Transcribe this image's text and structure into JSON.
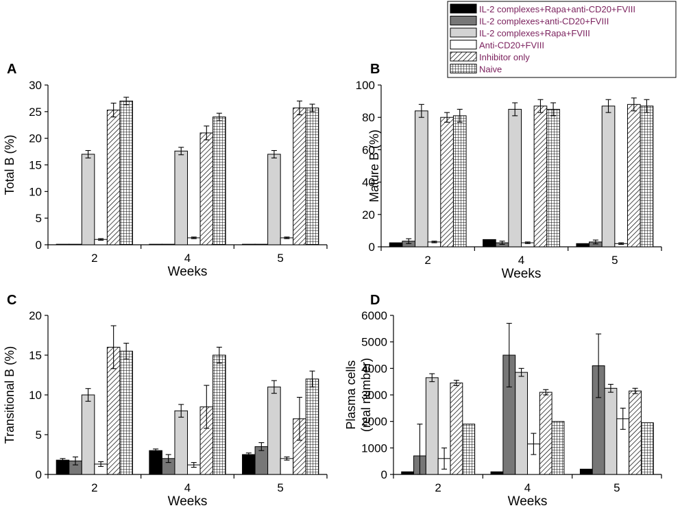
{
  "figure": {
    "series_names": [
      "IL-2 complexes+Rapa+anti-CD20+FVIII",
      "IL-2 complexes+anti-CD20+FVIII",
      "IL-2 complexes+Rapa+FVIII",
      "Anti-CD20+FVIII",
      "Inhibitor only",
      "Naive"
    ],
    "series_fills": [
      "solid-black",
      "solid-darkgray",
      "solid-lightgray",
      "white",
      "diagonal-hatch",
      "grid-hatch"
    ],
    "colors": {
      "black": "#000000",
      "darkgray": "#777777",
      "lightgray": "#d3d3d3",
      "white": "#ffffff",
      "legend_text": "#7a1f5c"
    }
  },
  "chart_data": [
    {
      "panel": "A",
      "type": "bar",
      "ylabel": "Total B (%)",
      "xlabel": "Weeks",
      "categories": [
        "2",
        "4",
        "5"
      ],
      "ylim": [
        0,
        30
      ],
      "yticks": [
        "0",
        "5",
        "10",
        "15",
        "20",
        "25",
        "30"
      ],
      "series": [
        {
          "name": "IL-2 complexes+Rapa+anti-CD20+FVIII",
          "values": [
            0.1,
            0.1,
            0.1
          ],
          "errors": [
            0,
            0,
            0
          ]
        },
        {
          "name": "IL-2 complexes+anti-CD20+FVIII",
          "values": [
            0.1,
            0.1,
            0.1
          ],
          "errors": [
            0,
            0,
            0
          ]
        },
        {
          "name": "IL-2 complexes+Rapa+FVIII",
          "values": [
            17.0,
            17.6,
            17.0
          ],
          "errors": [
            0.7,
            0.7,
            0.7
          ]
        },
        {
          "name": "Anti-CD20+FVIII",
          "values": [
            1.0,
            1.3,
            1.3
          ],
          "errors": [
            0.15,
            0.15,
            0.15
          ]
        },
        {
          "name": "Inhibitor only",
          "values": [
            25.3,
            21.0,
            25.7
          ],
          "errors": [
            1.3,
            1.3,
            1.3
          ]
        },
        {
          "name": "Naive",
          "values": [
            27.0,
            24.0,
            25.7
          ],
          "errors": [
            0.7,
            0.7,
            0.7
          ]
        }
      ]
    },
    {
      "panel": "B",
      "type": "bar",
      "ylabel": "Mature B (%)",
      "xlabel": "Weeks",
      "categories": [
        "2",
        "4",
        "5"
      ],
      "ylim": [
        0,
        100
      ],
      "yticks": [
        "0",
        "20",
        "40",
        "60",
        "80",
        "100"
      ],
      "series": [
        {
          "name": "IL-2 complexes+Rapa+anti-CD20+FVIII",
          "values": [
            2.5,
            4.5,
            2.0
          ],
          "errors": [
            0,
            0,
            0
          ]
        },
        {
          "name": "IL-2 complexes+anti-CD20+FVIII",
          "values": [
            3.5,
            2.5,
            3.0
          ],
          "errors": [
            1.5,
            1.0,
            1.2
          ]
        },
        {
          "name": "IL-2 complexes+Rapa+FVIII",
          "values": [
            84,
            85,
            87
          ],
          "errors": [
            4,
            4,
            4
          ]
        },
        {
          "name": "Anti-CD20+FVIII",
          "values": [
            3.0,
            2.5,
            2.0
          ],
          "errors": [
            0.5,
            0.5,
            0.5
          ]
        },
        {
          "name": "Inhibitor only",
          "values": [
            80,
            87,
            88
          ],
          "errors": [
            3,
            4,
            4
          ]
        },
        {
          "name": "Naive",
          "values": [
            81,
            85,
            87
          ],
          "errors": [
            4,
            4,
            4
          ]
        }
      ]
    },
    {
      "panel": "C",
      "type": "bar",
      "ylabel": "Transitional B (%)",
      "xlabel": "Weeks",
      "categories": [
        "2",
        "4",
        "5"
      ],
      "ylim": [
        0,
        20
      ],
      "yticks": [
        "0",
        "5",
        "10",
        "15",
        "20"
      ],
      "series": [
        {
          "name": "IL-2 complexes+Rapa+anti-CD20+FVIII",
          "values": [
            1.8,
            3.0,
            2.5
          ],
          "errors": [
            0.2,
            0.2,
            0.2
          ]
        },
        {
          "name": "IL-2 complexes+anti-CD20+FVIII",
          "values": [
            1.7,
            2.0,
            3.5
          ],
          "errors": [
            0.5,
            0.5,
            0.5
          ]
        },
        {
          "name": "IL-2 complexes+Rapa+FVIII",
          "values": [
            10.0,
            8.0,
            11.0
          ],
          "errors": [
            0.8,
            0.8,
            0.8
          ]
        },
        {
          "name": "Anti-CD20+FVIII",
          "values": [
            1.3,
            1.2,
            2.0
          ],
          "errors": [
            0.3,
            0.3,
            0.2
          ]
        },
        {
          "name": "Inhibitor only",
          "values": [
            16.0,
            8.5,
            7.0
          ],
          "errors": [
            2.7,
            2.7,
            2.7
          ]
        },
        {
          "name": "Naive",
          "values": [
            15.5,
            15.0,
            12.0
          ],
          "errors": [
            1.0,
            1.0,
            1.0
          ]
        }
      ]
    },
    {
      "panel": "D",
      "type": "bar",
      "ylabel": "Plasma cells\n(real number)",
      "xlabel": "Weeks",
      "categories": [
        "2",
        "4",
        "5"
      ],
      "ylim": [
        0,
        6000
      ],
      "yticks": [
        "0",
        "1000",
        "2000",
        "3000",
        "4000",
        "5000",
        "6000"
      ],
      "series": [
        {
          "name": "IL-2 complexes+Rapa+anti-CD20+FVIII",
          "values": [
            100,
            100,
            200
          ],
          "errors": [
            0,
            0,
            0
          ]
        },
        {
          "name": "IL-2 complexes+anti-CD20+FVIII",
          "values": [
            700,
            4500,
            4100
          ],
          "errors": [
            1200,
            1200,
            1200
          ]
        },
        {
          "name": "IL-2 complexes+Rapa+FVIII",
          "values": [
            3650,
            3850,
            3250
          ],
          "errors": [
            150,
            150,
            150
          ]
        },
        {
          "name": "Anti-CD20+FVIII",
          "values": [
            600,
            1150,
            2100
          ],
          "errors": [
            400,
            400,
            400
          ]
        },
        {
          "name": "Inhibitor only",
          "values": [
            3450,
            3100,
            3150
          ],
          "errors": [
            100,
            100,
            100
          ]
        },
        {
          "name": "Naive",
          "values": [
            1900,
            2000,
            1950
          ],
          "errors": [
            0,
            0,
            0
          ]
        }
      ]
    }
  ]
}
